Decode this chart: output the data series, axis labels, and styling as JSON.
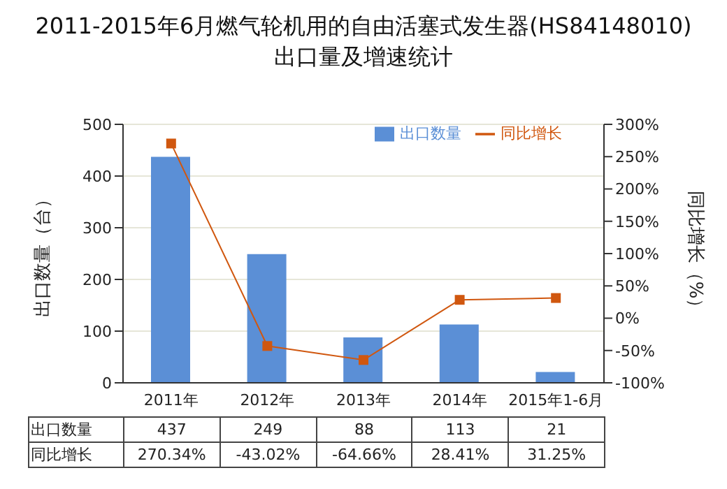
{
  "chart_data": {
    "type": "bar",
    "title": "2011-2015年6月燃气轮机用的自由活塞式发生器(HS84148010)出口量及增速统计",
    "categories": [
      "2011年",
      "2012年",
      "2013年",
      "2014年",
      "2015年1-6月"
    ],
    "series": [
      {
        "name": "出口数量",
        "color": "#5b8fd6",
        "values": [
          437,
          249,
          88,
          113,
          21
        ],
        "value_labels": [
          "437",
          "249",
          "88",
          "113",
          "21"
        ]
      },
      {
        "name": "同比增长",
        "type": "line",
        "axis": "y2",
        "color": "#d0570f",
        "values": [
          270.34,
          -43.02,
          -64.66,
          28.41,
          31.25
        ],
        "value_labels": [
          "270.34%",
          "-43.02%",
          "-64.66%",
          "28.41%",
          "31.25%"
        ]
      }
    ],
    "ylabel": "出口数量（台）",
    "y2label": "同比增长（%）",
    "ylim": [
      0,
      500
    ],
    "yticks": [
      0,
      100,
      200,
      300,
      400,
      500
    ],
    "y2lim": [
      -100,
      300
    ],
    "y2ticks": [
      {
        "value": -100,
        "label": "-100%"
      },
      {
        "value": -50,
        "label": "-50%"
      },
      {
        "value": 0,
        "label": "0%"
      },
      {
        "value": 50,
        "label": "50%"
      },
      {
        "value": 100,
        "label": "100%"
      },
      {
        "value": 150,
        "label": "150%"
      },
      {
        "value": 200,
        "label": "200%"
      },
      {
        "value": 250,
        "label": "250%"
      },
      {
        "value": 300,
        "label": "300%"
      }
    ],
    "grid": "y",
    "legend": "top right",
    "marker": "square",
    "line_style": "solid"
  }
}
